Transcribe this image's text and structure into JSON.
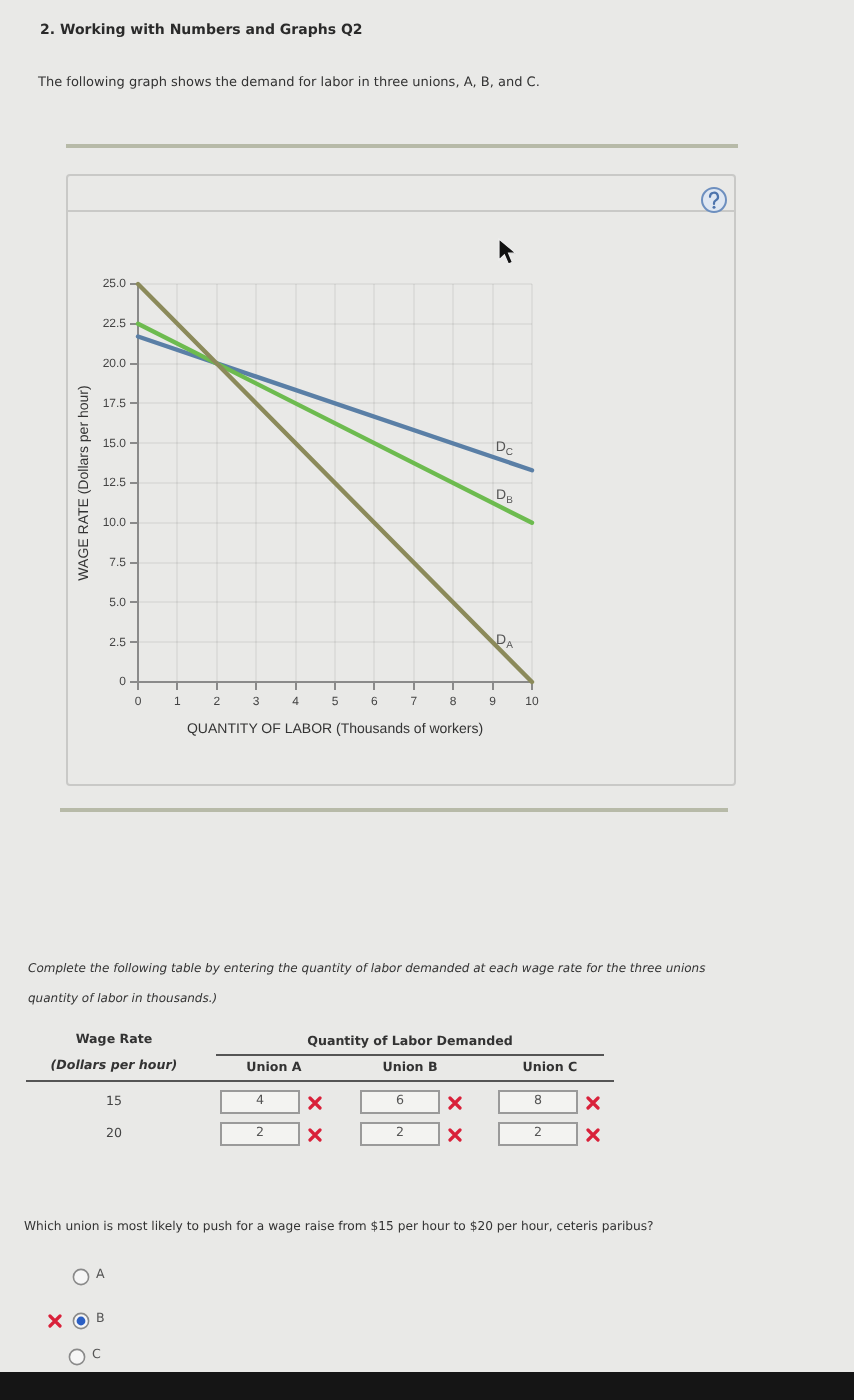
{
  "chart_data": {
    "type": "line",
    "title": "2. Working with Numbers and Graphs Q2",
    "subtitle": "The following graph shows the demand for labor in three unions, A, B, and C.",
    "xlabel": "QUANTITY OF LABOR (Thousands of workers)",
    "ylabel": "WAGE RATE (Dollars per hour)",
    "x": [
      0,
      10
    ],
    "series": [
      {
        "name": "D$_{A}$",
        "color": "#8b8a5a",
        "values": [
          25,
          0
        ]
      },
      {
        "name": "D$_{B}$",
        "color": "#6dbb4f",
        "values": [
          22.5,
          10
        ]
      },
      {
        "name": "D$_{C}$",
        "color": "#5a7fa6",
        "values": [
          21.7,
          13.3
        ]
      }
    ],
    "xlim": [
      0,
      10
    ],
    "ylim": [
      0,
      25
    ],
    "xticks": [
      0,
      1,
      2,
      3,
      4,
      5,
      6,
      7,
      8,
      9,
      10
    ],
    "yticks": [
      0,
      2.5,
      {
        "value": 5,
        "label": "5.0"
      },
      7.5,
      {
        "value": 10,
        "label": "10.0"
      },
      12.5,
      {
        "value": 15,
        "label": "15.0"
      },
      17.5,
      {
        "value": 20,
        "label": "20.0"
      },
      22.5,
      {
        "value": 25,
        "label": "25.0"
      }
    ],
    "grid": true,
    "legend": false,
    "marker": "none",
    "line_style": "solid",
    "annotations": [
      "Complete the following table by entering the quantity of labor demanded at each wage rate for the three unions",
      "quantity of labor in thousands.)",
      "Wage Rate",
      "(Dollars per hour)",
      "Quantity of Labor Demanded",
      "Union A",
      "Union B",
      "Union C",
      "15",
      "4",
      "6",
      "8",
      "20",
      "2",
      "2",
      "2",
      "Which union is most likely to push for a wage raise from $15 per hour to $20 per hour, ceteris paribus?",
      "A",
      "B",
      "C"
    ]
  }
}
